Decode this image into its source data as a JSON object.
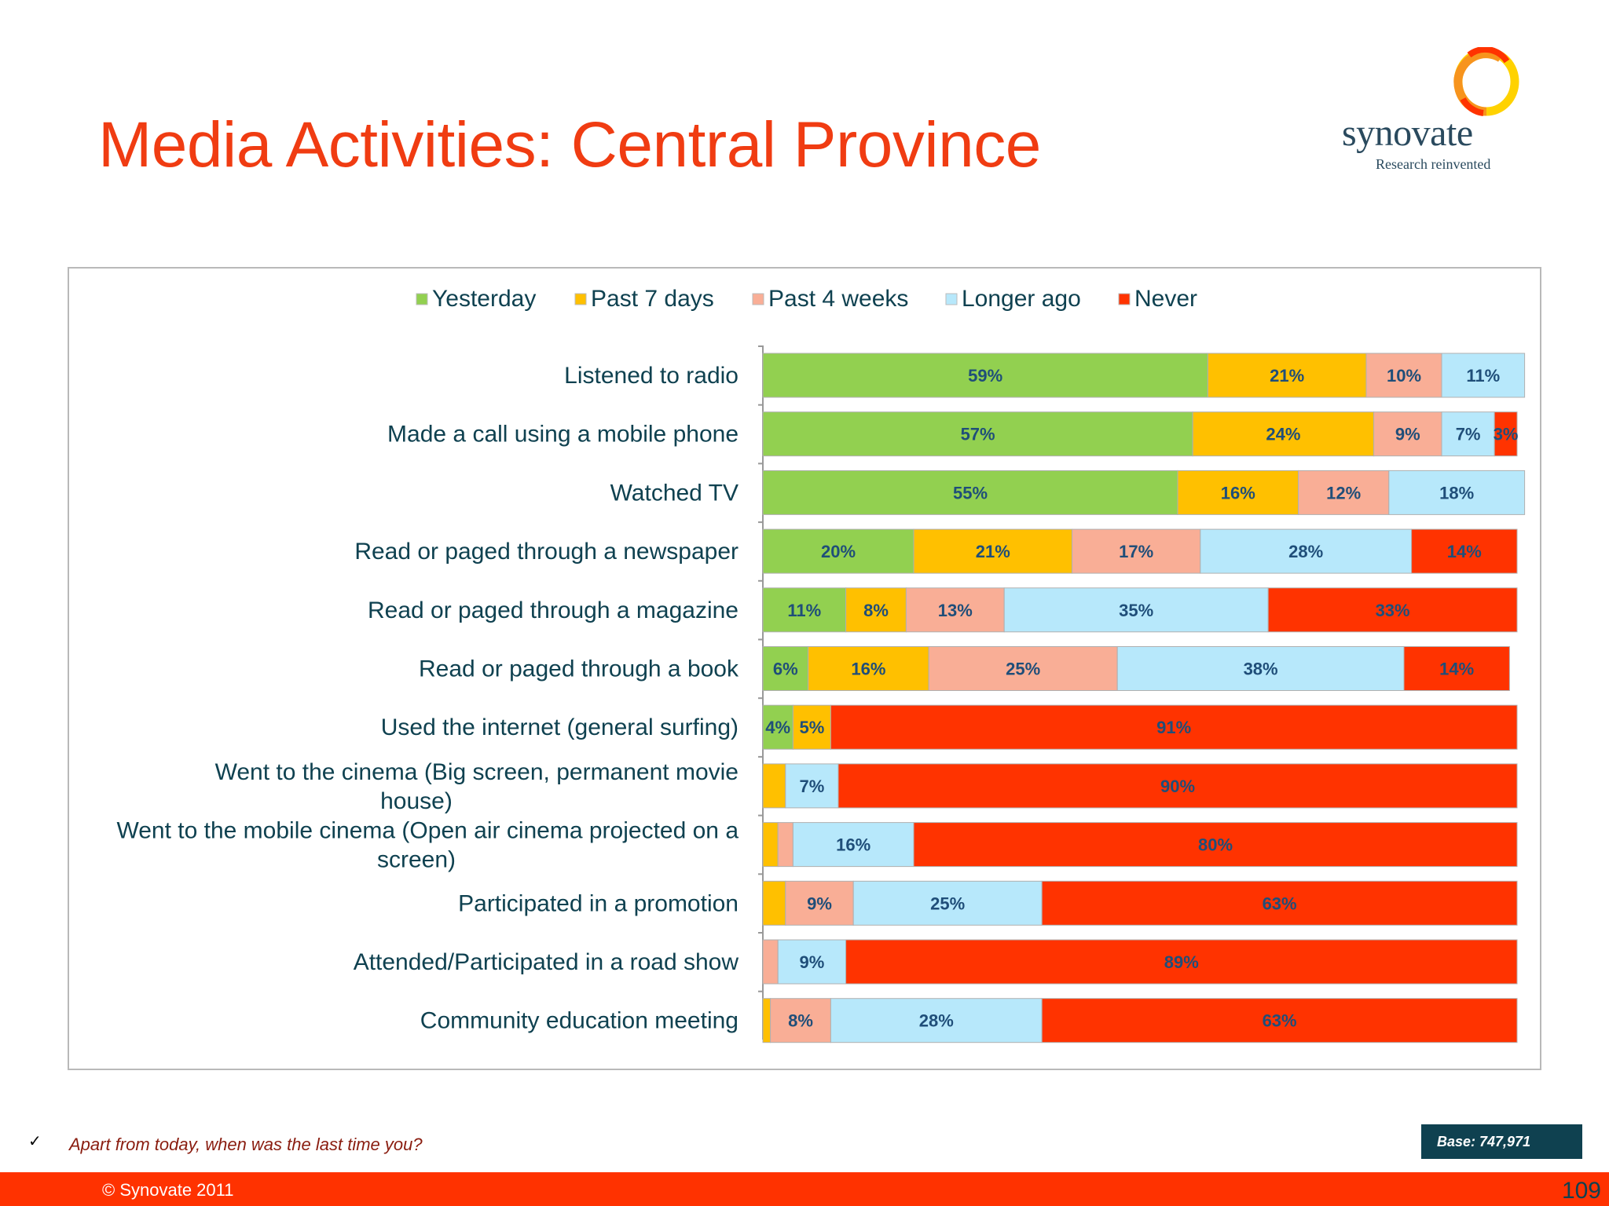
{
  "title": "Media Activities: Central Province",
  "logo": {
    "name": "synovate",
    "tagline": "Research reinvented"
  },
  "footnote": "Apart from today, when was the last time you?",
  "footnote_mark": "✓",
  "base": "Base: 747,971",
  "copyright": "© Synovate 2011",
  "page_number": "109",
  "chart_data": {
    "type": "bar",
    "orientation": "horizontal",
    "stacked": true,
    "xlim": [
      0,
      100
    ],
    "legend_position": "top",
    "categories": [
      "Listened to radio",
      "Made a call using a mobile phone",
      "Watched TV",
      "Read or paged through a newspaper",
      "Read or paged through a magazine",
      "Read or paged through a book",
      "Used the internet (general surfing)",
      "Went to the cinema (Big screen, permanent movie house)",
      "Went to the mobile cinema (Open air cinema projected on a screen)",
      "Participated in a promotion",
      "Attended/Participated in a road show",
      "Community education meeting"
    ],
    "series": [
      {
        "name": "Yesterday",
        "color": "#92d050",
        "values": [
          59,
          57,
          55,
          20,
          11,
          6,
          4,
          0,
          0,
          0,
          0,
          0
        ]
      },
      {
        "name": "Past 7 days",
        "color": "#ffc000",
        "values": [
          21,
          24,
          16,
          21,
          8,
          16,
          5,
          3,
          2,
          3,
          0,
          1
        ]
      },
      {
        "name": "Past 4 weeks",
        "color": "#f9ae96",
        "values": [
          10,
          9,
          12,
          17,
          13,
          25,
          0,
          0,
          2,
          9,
          2,
          8
        ]
      },
      {
        "name": "Longer ago",
        "color": "#b7e8fb",
        "values": [
          11,
          7,
          18,
          28,
          35,
          38,
          0,
          7,
          16,
          25,
          9,
          28
        ]
      },
      {
        "name": "Never",
        "color": "#ff3300",
        "values": [
          0,
          3,
          0,
          14,
          33,
          14,
          91,
          90,
          80,
          63,
          89,
          63
        ]
      }
    ],
    "data_labels": [
      [
        "59%",
        "21%",
        "10%",
        "11%",
        ""
      ],
      [
        "57%",
        "24%",
        "9%",
        "7%",
        "3%"
      ],
      [
        "55%",
        "16%",
        "12%",
        "18%",
        ""
      ],
      [
        "20%",
        "21%",
        "17%",
        "28%",
        "14%"
      ],
      [
        "11%",
        "8%",
        "13%",
        "35%",
        "33%"
      ],
      [
        "6%",
        "16%",
        "25%",
        "38%",
        "14%"
      ],
      [
        "4%",
        "5%",
        "",
        "",
        "91%"
      ],
      [
        "",
        "",
        "",
        "7%",
        "90%"
      ],
      [
        "",
        "",
        "",
        "16%",
        "80%"
      ],
      [
        "",
        "",
        "9%",
        "25%",
        "63%"
      ],
      [
        "",
        "",
        "",
        "9%",
        "89%"
      ],
      [
        "",
        "",
        "8%",
        "28%",
        "63%"
      ]
    ]
  }
}
